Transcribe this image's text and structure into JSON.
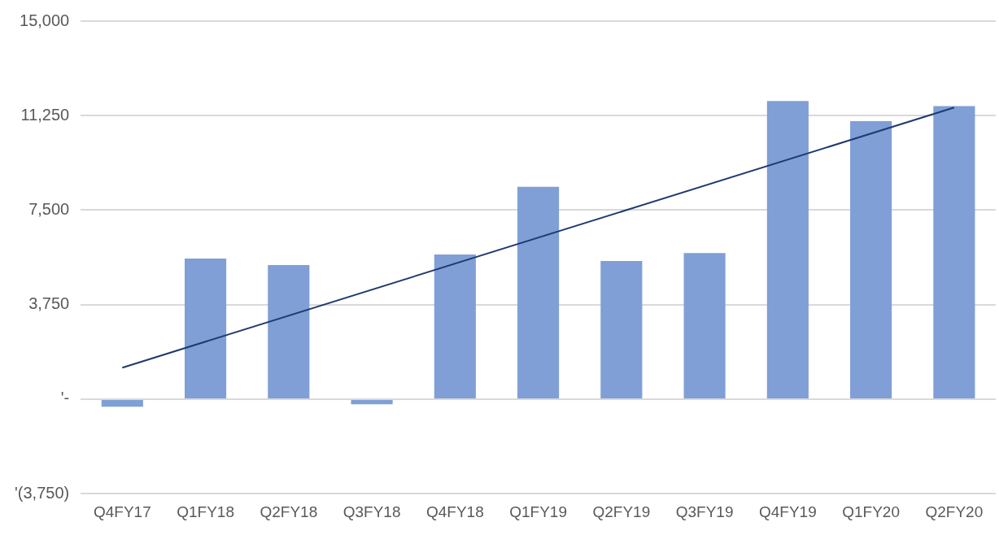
{
  "chart_data": {
    "type": "bar",
    "categories": [
      "Q4FY17",
      "Q1FY18",
      "Q2FY18",
      "Q3FY18",
      "Q4FY18",
      "Q1FY19",
      "Q2FY19",
      "Q3FY19",
      "Q4FY19",
      "Q1FY20",
      "Q2FY20"
    ],
    "series": [
      {
        "color": "#7f9fd6",
        "values": [
          -300,
          5580,
          5320,
          -200,
          5740,
          8430,
          5480,
          5800,
          11830,
          11030,
          11630
        ]
      },
      {
        "type": "line",
        "color": "#1f3a6e",
        "x": [
          "Q4FY17",
          "Q2FY20"
        ],
        "values": [
          1250,
          11570
        ]
      }
    ],
    "ylim": [
      -3750,
      15000
    ],
    "yticks": [
      {
        "value": -3750,
        "label": "'(3,750)"
      },
      {
        "value": 0,
        "label": "'-"
      },
      {
        "value": 3750,
        "label": "3,750"
      },
      {
        "value": 7500,
        "label": "7,500"
      },
      {
        "value": 11250,
        "label": "11,250"
      },
      {
        "value": 15000,
        "label": "15,000"
      }
    ],
    "grid": "y",
    "legend": false,
    "marker": "none"
  }
}
